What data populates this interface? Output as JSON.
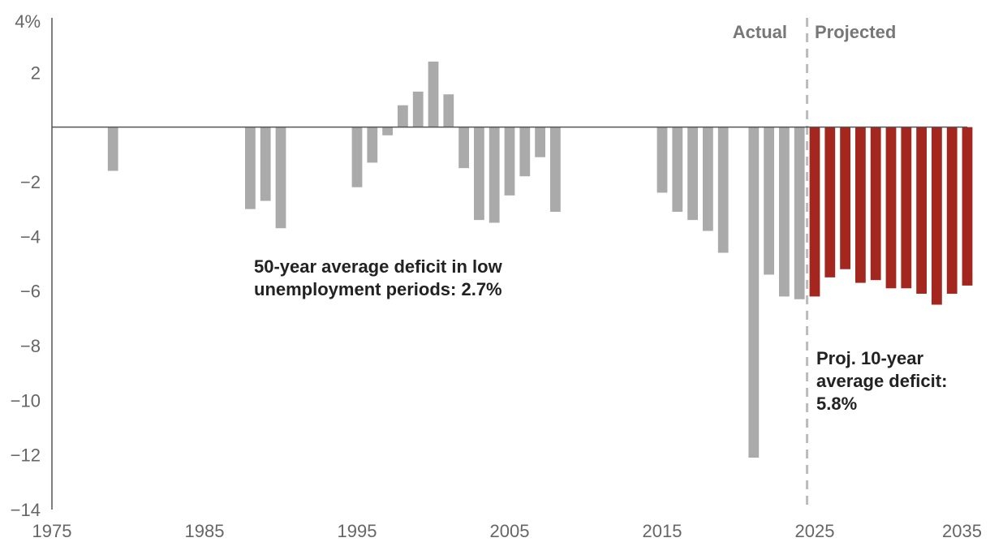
{
  "chart_data": {
    "type": "bar",
    "title": "",
    "xlabel": "",
    "ylabel": "",
    "xlim": [
      1975,
      2035
    ],
    "ylim": [
      -14,
      4
    ],
    "grid": false,
    "y_ticks": [
      4,
      2,
      0,
      -2,
      -4,
      -6,
      -8,
      -10,
      -12,
      -14
    ],
    "y_tick_labels": [
      "4%",
      "2",
      "",
      "−2",
      "−4",
      "−6",
      "−8",
      "−10",
      "−12",
      "−14"
    ],
    "x_ticks": [
      1975,
      1985,
      1995,
      2005,
      2015,
      2025,
      2035
    ],
    "x_tick_labels": [
      "1975",
      "1985",
      "1995",
      "2005",
      "2015",
      "2025",
      "2035"
    ],
    "divider_year": 2024.5,
    "region_labels": {
      "actual": "Actual",
      "projected": "Projected"
    },
    "colors": {
      "actual": "#aaaaaa",
      "projected": "#a3271f",
      "divider": "#bbbbbb",
      "axis": "#555555"
    },
    "series": [
      {
        "kind": "actual",
        "x": [
          1979,
          1988,
          1989,
          1990,
          1995,
          1996,
          1997,
          1998,
          1999,
          2000,
          2001,
          2002,
          2003,
          2004,
          2005,
          2006,
          2007,
          2008,
          2015,
          2016,
          2017,
          2018,
          2019,
          2021,
          2022,
          2023,
          2024
        ],
        "values": [
          -1.6,
          -3.0,
          -2.7,
          -3.7,
          -2.2,
          -1.3,
          -0.3,
          0.8,
          1.3,
          2.4,
          1.2,
          -1.5,
          -3.4,
          -3.5,
          -2.5,
          -1.8,
          -1.1,
          -3.1,
          -2.4,
          -3.1,
          -3.4,
          -3.8,
          -4.6,
          -12.1,
          -5.4,
          -6.2,
          -6.3
        ]
      },
      {
        "kind": "projected",
        "x": [
          2025,
          2026,
          2027,
          2028,
          2029,
          2030,
          2031,
          2032,
          2033,
          2034,
          2035
        ],
        "values": [
          -6.2,
          -5.5,
          -5.2,
          -5.7,
          -5.6,
          -5.9,
          -5.9,
          -6.1,
          -6.5,
          -6.1,
          -5.8
        ]
      }
    ],
    "annotations": [
      {
        "lines": [
          "50-year average deficit in low",
          "unemployment periods: 2.7%"
        ]
      },
      {
        "lines": [
          "Proj. 10-year",
          "average deficit:",
          "5.8%"
        ]
      }
    ]
  }
}
